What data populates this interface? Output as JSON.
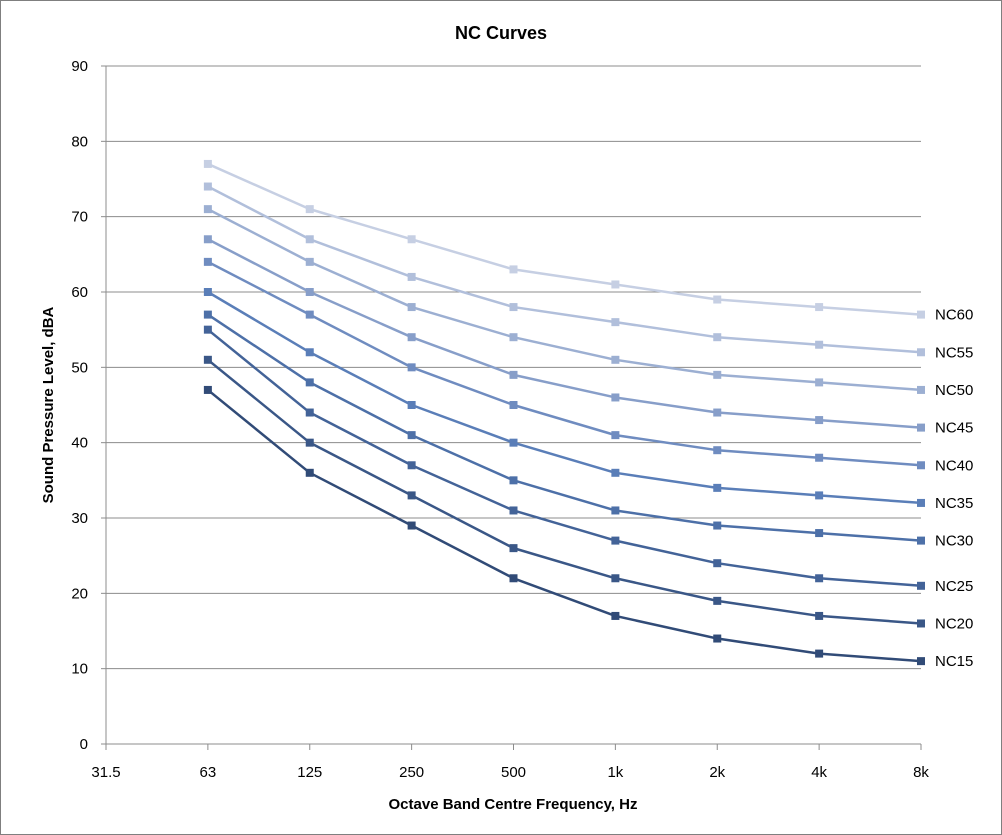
{
  "chart_data": {
    "type": "line",
    "title": "NC Curves",
    "xlabel": "Octave Band Centre Frequency, Hz",
    "ylabel": "Sound Pressure Level, dBA",
    "categories": [
      "31.5",
      "63",
      "125",
      "250",
      "500",
      "1k",
      "2k",
      "4k",
      "8k"
    ],
    "ylim": [
      0,
      90
    ],
    "yticks": [
      0,
      10,
      20,
      30,
      40,
      50,
      60,
      70,
      80,
      90
    ],
    "grid": true,
    "legend": "none; series labelled at right end of each line",
    "series": [
      {
        "name": "NC60",
        "color": "#c6cfe3",
        "values": [
          null,
          77,
          71,
          67,
          63,
          61,
          59,
          58,
          57
        ]
      },
      {
        "name": "NC55",
        "color": "#b1bfdb",
        "values": [
          null,
          74,
          67,
          62,
          58,
          56,
          54,
          53,
          52
        ]
      },
      {
        "name": "NC50",
        "color": "#9cafd2",
        "values": [
          null,
          71,
          64,
          58,
          54,
          51,
          49,
          48,
          47
        ]
      },
      {
        "name": "NC45",
        "color": "#879ec9",
        "values": [
          null,
          67,
          60,
          54,
          49,
          46,
          44,
          43,
          42
        ]
      },
      {
        "name": "NC40",
        "color": "#6f8cc0",
        "values": [
          null,
          64,
          57,
          50,
          45,
          41,
          39,
          38,
          37
        ]
      },
      {
        "name": "NC35",
        "color": "#5a7eb8",
        "values": [
          null,
          60,
          52,
          45,
          40,
          36,
          34,
          33,
          32
        ]
      },
      {
        "name": "NC30",
        "color": "#4d70a8",
        "values": [
          null,
          57,
          48,
          41,
          35,
          31,
          29,
          28,
          27
        ]
      },
      {
        "name": "NC25",
        "color": "#436398",
        "values": [
          null,
          55,
          44,
          37,
          31,
          27,
          24,
          22,
          21
        ]
      },
      {
        "name": "NC20",
        "color": "#3a5787",
        "values": [
          null,
          51,
          40,
          33,
          26,
          22,
          19,
          17,
          16
        ]
      },
      {
        "name": "NC15",
        "color": "#314b77",
        "values": [
          null,
          47,
          36,
          29,
          22,
          17,
          14,
          12,
          11
        ]
      }
    ]
  }
}
